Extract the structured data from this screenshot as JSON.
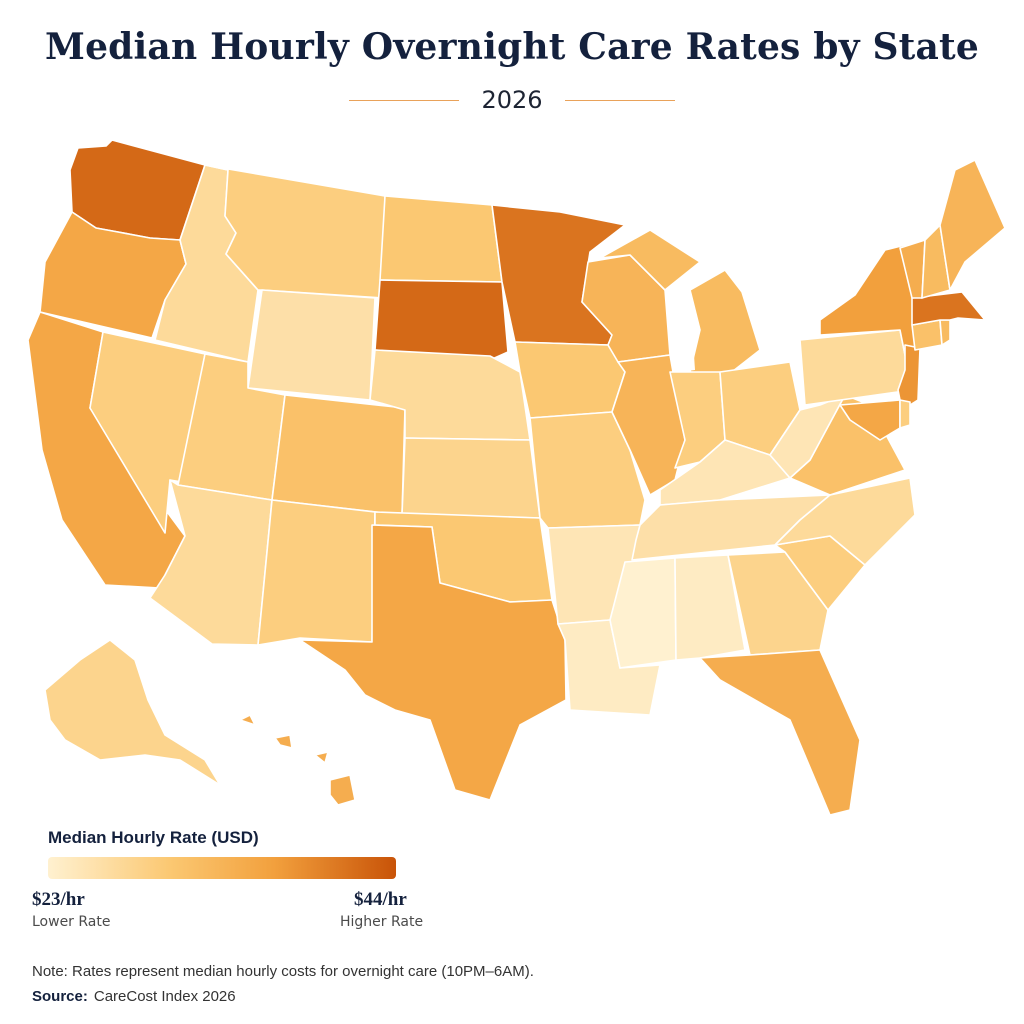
{
  "title": "Median Hourly Overnight Care Rates by State",
  "subtitle": "2026",
  "colors": {
    "scale_low": "#fff1d0",
    "scale_high": "#c85308",
    "state_border": "#ffffff"
  },
  "legend": {
    "title": "Median Hourly Rate (USD)",
    "min_label": "$23/hr",
    "min_caption": "Lower Rate",
    "max_label": "$44/hr",
    "max_caption": "Higher Rate"
  },
  "note": "Note: Rates represent median hourly costs for overnight care  (10PM–6AM).",
  "source": {
    "label": "Source:",
    "text": "CareCost Index 2026"
  },
  "map_data": {
    "scale": [
      23,
      44
    ],
    "approx_color_level": {
      "WA": 0.9,
      "OR": 0.6,
      "CA": 0.6,
      "ID": 0.2,
      "NV": 0.3,
      "MT": 0.3,
      "WY": 0.15,
      "UT": 0.3,
      "AZ": 0.2,
      "CO": 0.4,
      "NM": 0.3,
      "ND": 0.35,
      "SD": 0.9,
      "NE": 0.2,
      "KS": 0.25,
      "OK": 0.35,
      "TX": 0.6,
      "MN": 0.85,
      "IA": 0.35,
      "MO": 0.3,
      "AR": 0.1,
      "LA": 0.05,
      "WI": 0.5,
      "IL": 0.5,
      "MI": 0.45,
      "IN": 0.3,
      "OH": 0.3,
      "KY": 0.1,
      "TN": 0.15,
      "MS": 0.0,
      "AL": 0.05,
      "GA": 0.25,
      "FL": 0.55,
      "SC": 0.3,
      "NC": 0.2,
      "VA": 0.4,
      "WV": 0.1,
      "PA": 0.2,
      "NY": 0.65,
      "NJ": 0.7,
      "MD": 0.6,
      "DE": 0.3,
      "CT": 0.4,
      "RI": 0.45,
      "MA": 0.85,
      "VT": 0.55,
      "NH": 0.45,
      "ME": 0.5,
      "AK": 0.25,
      "HI": 0.55
    }
  }
}
